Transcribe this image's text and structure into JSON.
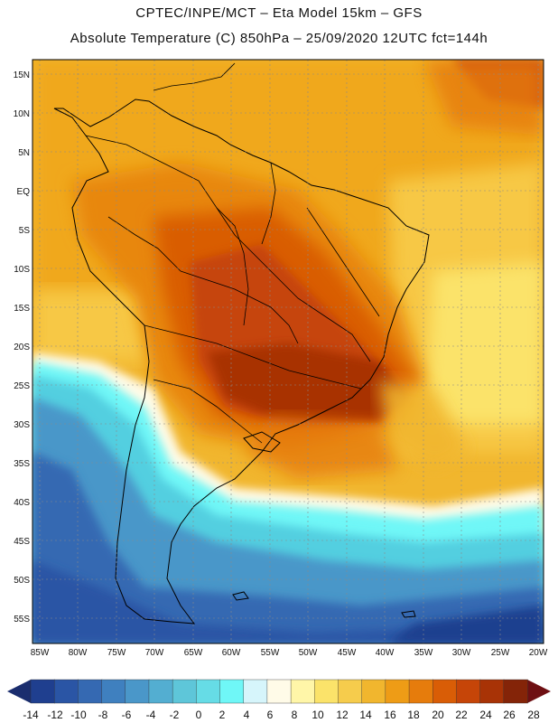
{
  "header": {
    "line1": "CPTEC/INPE/MCT –  Eta Model 15km – GFS",
    "line2": "Absolute Temperature (C) 850hPa – 25/09/2020 12UTC fct=144h"
  },
  "map": {
    "variable": "Absolute Temperature",
    "units": "C",
    "level": "850hPa",
    "lat_ticks": [
      "15N",
      "10N",
      "5N",
      "EQ",
      "5S",
      "10S",
      "15S",
      "20S",
      "25S",
      "30S",
      "35S",
      "40S",
      "45S",
      "50S",
      "55S"
    ],
    "lon_ticks": [
      "85W",
      "80W",
      "75W",
      "70W",
      "65W",
      "60W",
      "55W",
      "50W",
      "45W",
      "40W",
      "35W",
      "30W",
      "25W",
      "20W"
    ]
  },
  "colorbar": {
    "labels": [
      "-14",
      "-12",
      "-10",
      "-8",
      "-6",
      "-4",
      "-2",
      "0",
      "2",
      "4",
      "6",
      "8",
      "10",
      "12",
      "14",
      "16",
      "18",
      "20",
      "22",
      "24",
      "26",
      "28"
    ],
    "colors": [
      "#1f3f8f",
      "#2a55a5",
      "#3569b2",
      "#3f80bf",
      "#4a97c9",
      "#53aed1",
      "#5ec6d9",
      "#66dce6",
      "#6ff7f7",
      "#d6f5fb",
      "#fffbe8",
      "#fff6a8",
      "#fbe36a",
      "#f6cc4c",
      "#f1b62e",
      "#ee9c16",
      "#e67c0c",
      "#d95d06",
      "#c64508",
      "#a83306",
      "#842408"
    ],
    "left_arrow_color": "#1a2d6e",
    "right_arrow_color": "#6e0f12"
  }
}
